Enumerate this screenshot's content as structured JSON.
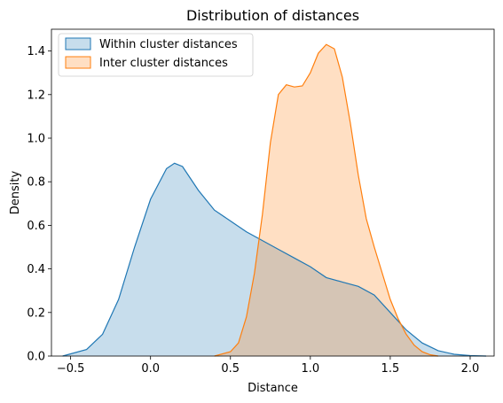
{
  "chart_data": {
    "type": "area",
    "title": "Distribution of distances",
    "xlabel": "Distance",
    "ylabel": "Density",
    "xlim": [
      -0.62,
      2.15
    ],
    "ylim": [
      0,
      1.5
    ],
    "xticks": [
      -0.5,
      0.0,
      0.5,
      1.0,
      1.5,
      2.0
    ],
    "xtick_labels": [
      "−0.5",
      "0.0",
      "0.5",
      "1.0",
      "1.5",
      "2.0"
    ],
    "yticks": [
      0.0,
      0.2,
      0.4,
      0.6,
      0.8,
      1.0,
      1.2,
      1.4
    ],
    "ytick_labels": [
      "0.0",
      "0.2",
      "0.4",
      "0.6",
      "0.8",
      "1.0",
      "1.2",
      "1.4"
    ],
    "grid": false,
    "legend_position": "top-left",
    "series": [
      {
        "name": "Within cluster distances",
        "color": "#1f77b4",
        "fill_opacity": 0.25,
        "x": [
          -0.55,
          -0.4,
          -0.3,
          -0.2,
          -0.1,
          0.0,
          0.1,
          0.15,
          0.2,
          0.3,
          0.4,
          0.5,
          0.6,
          0.7,
          0.8,
          0.9,
          1.0,
          1.1,
          1.2,
          1.3,
          1.4,
          1.5,
          1.6,
          1.7,
          1.8,
          1.9,
          2.0,
          2.1
        ],
        "y": [
          0.0,
          0.03,
          0.1,
          0.26,
          0.5,
          0.72,
          0.86,
          0.885,
          0.87,
          0.76,
          0.67,
          0.62,
          0.57,
          0.53,
          0.49,
          0.45,
          0.41,
          0.36,
          0.34,
          0.32,
          0.28,
          0.2,
          0.12,
          0.06,
          0.025,
          0.008,
          0.002,
          0.0
        ]
      },
      {
        "name": "Inter cluster distances",
        "color": "#ff7f0e",
        "fill_opacity": 0.25,
        "x": [
          0.4,
          0.5,
          0.55,
          0.6,
          0.65,
          0.7,
          0.75,
          0.8,
          0.85,
          0.9,
          0.95,
          1.0,
          1.05,
          1.1,
          1.15,
          1.2,
          1.25,
          1.3,
          1.35,
          1.4,
          1.45,
          1.5,
          1.55,
          1.6,
          1.65,
          1.7,
          1.75,
          1.8
        ],
        "y": [
          0.0,
          0.02,
          0.06,
          0.18,
          0.38,
          0.65,
          0.98,
          1.2,
          1.245,
          1.235,
          1.24,
          1.3,
          1.39,
          1.43,
          1.41,
          1.28,
          1.07,
          0.83,
          0.63,
          0.5,
          0.38,
          0.26,
          0.17,
          0.1,
          0.05,
          0.02,
          0.006,
          0.0
        ]
      }
    ]
  }
}
